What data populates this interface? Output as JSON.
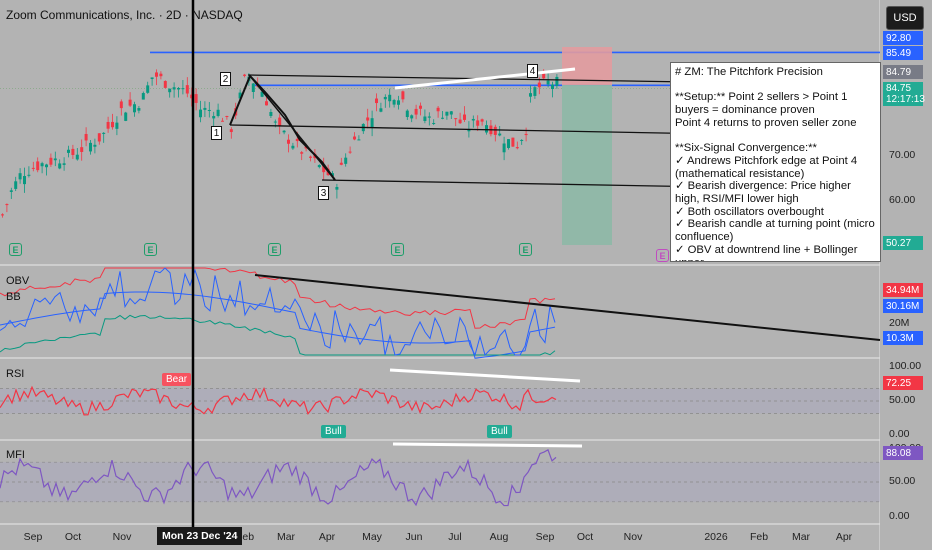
{
  "header": {
    "symbol_title": "Zoom Communications, Inc. · 2D · NASDAQ",
    "currency_button": "USD"
  },
  "note": {
    "text": "# ZM: The Pitchfork Precision\n\n**Setup:** Point 2 sellers > Point 1 buyers = dominance proven\nPoint 4 returns to proven seller zone\n\n**Six-Signal Convergence:**\n✓ Andrews Pitchfork edge at Point 4 (mathematical resistance)\n✓ Bearish divergence: Price higher high, RSI/MFI lower high\n✓ Both oscillators overbought\n✓ Bearish candle at turning point (micro confluence)\n✓ OBV at downtrend line + Bollinger upper"
  },
  "panes": {
    "obv_label": "OBV",
    "bb_label": "BB",
    "rsi_label": "RSI",
    "mfi_label": "MFI"
  },
  "points": [
    "1",
    "2",
    "3",
    "4"
  ],
  "earnings_marker": "E",
  "signals": {
    "bear": "Bear",
    "bull_1": "Bull",
    "bull_2": "Bull"
  },
  "price_axis": {
    "ticks": [
      "70.00",
      "60.00"
    ],
    "tags": [
      {
        "label": "92.80",
        "color": "#2962ff"
      },
      {
        "label": "85.49",
        "color": "#2962ff"
      },
      {
        "label": "84.79",
        "color": "#787b86"
      },
      {
        "label": "84.75",
        "sub": "12:17:13",
        "color": "#22ab94"
      },
      {
        "label": "50.27",
        "color": "#22ab94"
      }
    ]
  },
  "obv_axis": {
    "tick": "20M",
    "tags": [
      {
        "label": "34.94M",
        "color": "#f23645"
      },
      {
        "label": "30.16M",
        "color": "#2962ff"
      },
      {
        "label": "10.3M",
        "color": "#2962ff"
      }
    ]
  },
  "rsi_axis": {
    "ticks": [
      "100.00",
      "50.00",
      "0.00"
    ],
    "tag": {
      "label": "72.25",
      "color": "#f23645"
    }
  },
  "mfi_axis": {
    "ticks": [
      "100.00",
      "50.00",
      "0.00"
    ],
    "tag": {
      "label": "88.08",
      "color": "#7e57c2"
    }
  },
  "time_axis": {
    "labels": [
      "Sep",
      "Oct",
      "Nov",
      "Feb",
      "Mar",
      "Apr",
      "May",
      "Jun",
      "Jul",
      "Aug",
      "Sep",
      "Oct",
      "Nov",
      "2026",
      "Feb",
      "Mar",
      "Apr"
    ],
    "crosshair_label": "Mon 23 Dec '24"
  },
  "chart_data": {
    "type": "candlestick",
    "symbol": "ZM",
    "timeframe": "2D",
    "exchange": "NASDAQ",
    "price_levels": {
      "resistance_high": 92.8,
      "resistance_mid": 85.49,
      "last": 84.75,
      "prev_close": 84.79,
      "target": 50.27
    },
    "pitchfork_points": [
      {
        "label": "1",
        "date": "Jan 2025",
        "price": 76.0
      },
      {
        "label": "2",
        "date": "Jan 2025",
        "price": 88.5
      },
      {
        "label": "3",
        "date": "Apr 2025",
        "price": 64.5
      },
      {
        "label": "4",
        "date": "Sep 2025",
        "price": 86.0
      }
    ],
    "close_series": {
      "x": [
        "Aug 24",
        "Sep 24",
        "Oct 24",
        "Nov 24",
        "Dec 24",
        "Jan 25",
        "Feb 25",
        "Mar 25",
        "Apr 25",
        "May 25",
        "Jun 25",
        "Jul 25",
        "Aug 25",
        "Sep 25"
      ],
      "y": [
        62,
        70,
        72,
        84,
        86,
        82,
        86,
        74,
        68,
        82,
        80,
        77,
        73,
        85
      ]
    },
    "obv": {
      "last": 30.16,
      "upper_band": 34.94,
      "lower_band": 10.3,
      "unit": "M"
    },
    "rsi": {
      "last": 72.25,
      "range": [
        0,
        100
      ],
      "bands": [
        70,
        30
      ]
    },
    "mfi": {
      "last": 88.08,
      "range": [
        0,
        100
      ],
      "bands": [
        80,
        20
      ]
    }
  }
}
